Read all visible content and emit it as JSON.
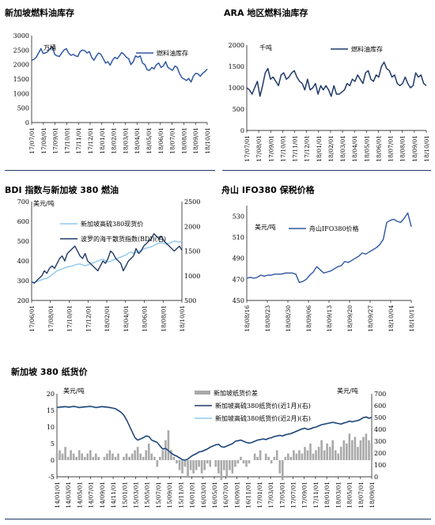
{
  "colors": {
    "dark_navy": "#1f3a68",
    "mid_blue": "#2f56a3",
    "light_blue": "#8ec8ee",
    "bar_grey": "#a9a9a9",
    "rule_navy": "#1f3a68"
  },
  "panels": [
    {
      "title": "新加坡燃料油库存"
    },
    {
      "title": "ARA 地区燃料油库存"
    },
    {
      "title": "BDI 指数与新加坡 380 燃油"
    },
    {
      "title": "舟山 IFO380 保税价格"
    },
    {
      "title": "新加坡 380 纸货价"
    }
  ],
  "chart_data": [
    {
      "type": "line",
      "unit_label": "万桶",
      "ylim": [
        0,
        3000
      ],
      "yticks": [
        "0",
        "500",
        "1000",
        "1500",
        "2000",
        "2500",
        "3000"
      ],
      "xticks": [
        "17/07/01",
        "17/08/01",
        "17/09/01",
        "17/10/01",
        "17/11/01",
        "17/12/01",
        "18/01/01",
        "18/02/01",
        "18/03/01",
        "18/04/01",
        "18/05/01",
        "18/06/01",
        "18/07/01",
        "18/08/01",
        "18/09/01",
        "18/10/01"
      ],
      "legend": "top-right",
      "series": [
        {
          "name": "燃料油库存",
          "color": "#2f56a3",
          "values": [
            2150,
            2180,
            2250,
            2400,
            2550,
            2380,
            2400,
            2450,
            2550,
            2600,
            2350,
            2300,
            2280,
            2400,
            2500,
            2550,
            2400,
            2320,
            2350,
            2300,
            2280,
            2450,
            2500,
            2480,
            2400,
            2450,
            2250,
            2150,
            2300,
            2400,
            2350,
            2200,
            2050,
            2100,
            1980,
            2150,
            2250,
            2200,
            2300,
            2420,
            2350,
            2250,
            2200,
            2000,
            2100,
            2300,
            2250,
            2300,
            2050,
            2000,
            1820,
            1800,
            1900,
            1850,
            2000,
            2050,
            1900,
            1950,
            2100,
            1900,
            1850,
            1800,
            1950,
            1900,
            1700,
            1550,
            1500,
            1450,
            1520,
            1400,
            1600,
            1700,
            1680,
            1600,
            1700,
            1760,
            1850
          ]
        }
      ]
    },
    {
      "type": "line",
      "unit_label": "千吨",
      "ylim": [
        0,
        2000
      ],
      "yticks": [
        "0",
        "500",
        "1000",
        "1500",
        "2000"
      ],
      "xticks": [
        "17/07/01",
        "17/08/01",
        "17/09/01",
        "17/10/01",
        "17/11/01",
        "17/12/01",
        "18/01/01",
        "18/02/01",
        "18/03/01",
        "18/04/01",
        "18/05/01",
        "18/06/01",
        "18/07/01",
        "18/08/01",
        "18/09/01",
        "18/10/01"
      ],
      "legend": "top-right",
      "series": [
        {
          "name": "燃料油库存",
          "color": "#1f3a68",
          "values": [
            1000,
            950,
            850,
            1000,
            1150,
            800,
            1050,
            1350,
            1450,
            1200,
            1250,
            1150,
            1050,
            1300,
            1350,
            1200,
            1250,
            1350,
            1400,
            1250,
            1150,
            1100,
            950,
            1200,
            950,
            1000,
            1100,
            850,
            1050,
            950,
            1050,
            950,
            800,
            1050,
            850,
            850,
            900,
            950,
            1100,
            1050,
            1200,
            1150,
            1300,
            1200,
            1100,
            1350,
            1400,
            1200,
            1150,
            1300,
            1250,
            1500,
            1600,
            1450,
            1400,
            1250,
            1300,
            1100,
            1050,
            1100,
            1250,
            1100,
            1000,
            1050,
            1350,
            1250,
            1300,
            1100,
            1050
          ]
        }
      ]
    },
    {
      "type": "line",
      "left_unit_label": "美元/吨",
      "ylim_left": [
        200,
        700
      ],
      "ylim_right": [
        500,
        2500
      ],
      "yticks_left": [
        "200",
        "300",
        "400",
        "500",
        "600",
        "700"
      ],
      "yticks_right": [
        "500",
        "1000",
        "1500",
        "2000",
        "2500"
      ],
      "xticks": [
        "17/06/01",
        "17/08/01",
        "17/10/01",
        "17/12/01",
        "18/02/01",
        "18/04/01",
        "18/06/01",
        "18/08/01",
        "18/10/01"
      ],
      "legend": "top-left",
      "series": [
        {
          "name": "新加坡高硫380现货价",
          "axis": "left",
          "color": "#8ec8ee",
          "values": [
            290,
            292,
            295,
            300,
            305,
            310,
            312,
            320,
            330,
            340,
            350,
            355,
            360,
            365,
            370,
            372,
            375,
            380,
            383,
            385,
            380,
            375,
            380,
            385,
            390,
            395,
            400,
            405,
            410,
            400,
            395,
            398,
            405,
            410,
            415,
            420,
            425,
            430,
            440,
            445,
            438,
            442,
            448,
            455,
            460,
            465,
            468,
            472,
            478,
            485,
            490,
            492,
            488,
            485,
            490,
            495,
            500,
            498,
            495,
            500
          ]
        },
        {
          "name": "波罗的海干散货指数(BDI)(右)",
          "axis": "right",
          "color": "#1f3a68",
          "values": [
            880,
            850,
            900,
            950,
            1000,
            1100,
            1050,
            1150,
            1200,
            1150,
            1250,
            1350,
            1400,
            1300,
            1450,
            1500,
            1550,
            1600,
            1500,
            1400,
            1350,
            1450,
            1300,
            1250,
            1200,
            1150,
            1100,
            1200,
            1300,
            1250,
            1350,
            1500,
            1450,
            1350,
            1300,
            1250,
            1100,
            1200,
            1300,
            1350,
            1400,
            1550,
            1450,
            1500,
            1600,
            1650,
            1700,
            1750,
            1850,
            1800,
            1750,
            1800,
            1700,
            1650,
            1600,
            1550,
            1500,
            1550,
            1600,
            1520
          ]
        }
      ]
    },
    {
      "type": "line",
      "left_unit_label": "美元/吨",
      "ylim": [
        450,
        540
      ],
      "yticks": [
        "450",
        "470",
        "490",
        "510",
        "530"
      ],
      "xticks": [
        "18/08/16",
        "18/08/23",
        "18/08/30",
        "18/09/06",
        "18/09/13",
        "18/09/20",
        "18/09/27",
        "18/10/04",
        "18/10/11"
      ],
      "legend": "top-right",
      "series": [
        {
          "name": "舟山IFO380价格",
          "color": "#2f56a3",
          "values": [
            471,
            472,
            471,
            472,
            474,
            473,
            474,
            474,
            475,
            475,
            475,
            476,
            476,
            476,
            475,
            467,
            468,
            470,
            474,
            477,
            482,
            479,
            476,
            477,
            478,
            480,
            482,
            483,
            487,
            486,
            488,
            490,
            492,
            495,
            494,
            496,
            498,
            500,
            503,
            508,
            524,
            526,
            527,
            525,
            524,
            528,
            533,
            520
          ]
        }
      ]
    },
    {
      "type": "line",
      "left_unit_label": "美元/吨",
      "ylim_left": [
        -5,
        20
      ],
      "ylim_right": [
        0,
        700
      ],
      "yticks_left": [
        "-5",
        "0",
        "5",
        "10",
        "15",
        "20"
      ],
      "yticks_right": [
        "0",
        "100",
        "200",
        "300",
        "400",
        "500",
        "600",
        "700"
      ],
      "xticks": [
        "14/01/01",
        "14/03/01",
        "14/05/01",
        "14/07/01",
        "14/09/01",
        "14/11/01",
        "15/01/01",
        "15/03/01",
        "15/05/01",
        "15/07/01",
        "15/09/01",
        "15/11/01",
        "16/01/01",
        "16/03/01",
        "16/05/01",
        "16/07/01",
        "16/09/01",
        "16/11/01",
        "17/01/01",
        "17/03/01",
        "17/05/01",
        "17/07/01",
        "17/09/01",
        "17/11/01",
        "18/01/01",
        "18/03/01",
        "18/05/01",
        "18/07/01",
        "18/09/01"
      ],
      "legend": "top-center",
      "series": [
        {
          "name": "新加坡纸货价差",
          "axis": "left",
          "kind": "bar",
          "color": "#a9a9a9",
          "values": [
            2,
            3,
            2,
            4,
            1,
            3,
            2,
            1,
            3,
            2,
            1,
            2,
            3,
            1,
            2,
            1,
            0,
            1,
            2,
            3,
            2,
            1,
            2,
            0,
            1,
            2,
            1,
            2,
            3,
            4,
            2,
            1,
            3,
            5,
            2,
            1,
            -2,
            1,
            3,
            6,
            9,
            3,
            1,
            -1,
            -3,
            -4,
            -2,
            -5,
            -3,
            -4,
            -3,
            -2,
            -4,
            -3,
            -1,
            -2,
            0,
            -2,
            -4,
            -6,
            -3,
            -5,
            -3,
            -4,
            -2,
            -1,
            1,
            -1,
            -2,
            -1,
            0,
            2,
            1,
            3,
            0,
            2,
            1,
            -1,
            1,
            3,
            -4,
            -6,
            1,
            2,
            1,
            3,
            2,
            3,
            2,
            4,
            3,
            5,
            2,
            3,
            4,
            6,
            3,
            5,
            4,
            6,
            3,
            2,
            4,
            6,
            5,
            8,
            6,
            7,
            4,
            6,
            7,
            8,
            6,
            5
          ]
        },
        {
          "name": "新加坡高硫380纸货价(近1月)(右)",
          "axis": "right",
          "color": "#1f3a68",
          "values": [
            585,
            588,
            590,
            592,
            588,
            590,
            595,
            590,
            585,
            588,
            590,
            592,
            595,
            590,
            585,
            588,
            592,
            590,
            588,
            585,
            580,
            575,
            560,
            545,
            520,
            480,
            430,
            380,
            330,
            310,
            320,
            330,
            345,
            340,
            310,
            300,
            290,
            260,
            235,
            240,
            220,
            200,
            185,
            175,
            160,
            145,
            140,
            150,
            170,
            185,
            195,
            210,
            215,
            225,
            235,
            250,
            260,
            270,
            275,
            255,
            250,
            260,
            270,
            280,
            300,
            305,
            310,
            300,
            290,
            285,
            290,
            300,
            310,
            315,
            320,
            315,
            325,
            330,
            340,
            345,
            350,
            345,
            355,
            360,
            365,
            375,
            385,
            395,
            405,
            410,
            400,
            405,
            415,
            420,
            430,
            440,
            445,
            450,
            455,
            460,
            455,
            450,
            445,
            455,
            460,
            470,
            465,
            470,
            475,
            485,
            500,
            505,
            495,
            500
          ]
        },
        {
          "name": "新加坡高硫380纸货价(近2月)(右)",
          "axis": "right",
          "color": "#8ec8ee",
          "values": [
            580,
            583,
            585,
            588,
            584,
            586,
            590,
            586,
            581,
            584,
            586,
            588,
            591,
            586,
            581,
            584,
            588,
            586,
            584,
            581,
            576,
            571,
            556,
            541,
            516,
            476,
            426,
            376,
            326,
            306,
            316,
            326,
            341,
            336,
            306,
            296,
            286,
            256,
            231,
            236,
            216,
            196,
            181,
            171,
            156,
            141,
            136,
            146,
            166,
            181,
            191,
            206,
            211,
            221,
            231,
            246,
            256,
            266,
            271,
            251,
            246,
            256,
            266,
            276,
            296,
            301,
            306,
            296,
            286,
            281,
            286,
            296,
            306,
            311,
            316,
            311,
            321,
            326,
            336,
            341,
            346,
            341,
            351,
            356,
            361,
            371,
            381,
            391,
            401,
            406,
            396,
            401,
            411,
            416,
            426,
            436,
            441,
            446,
            451,
            456,
            451,
            446,
            441,
            451,
            456,
            466,
            461,
            466,
            471,
            481,
            496,
            501,
            491,
            496
          ]
        }
      ]
    }
  ]
}
